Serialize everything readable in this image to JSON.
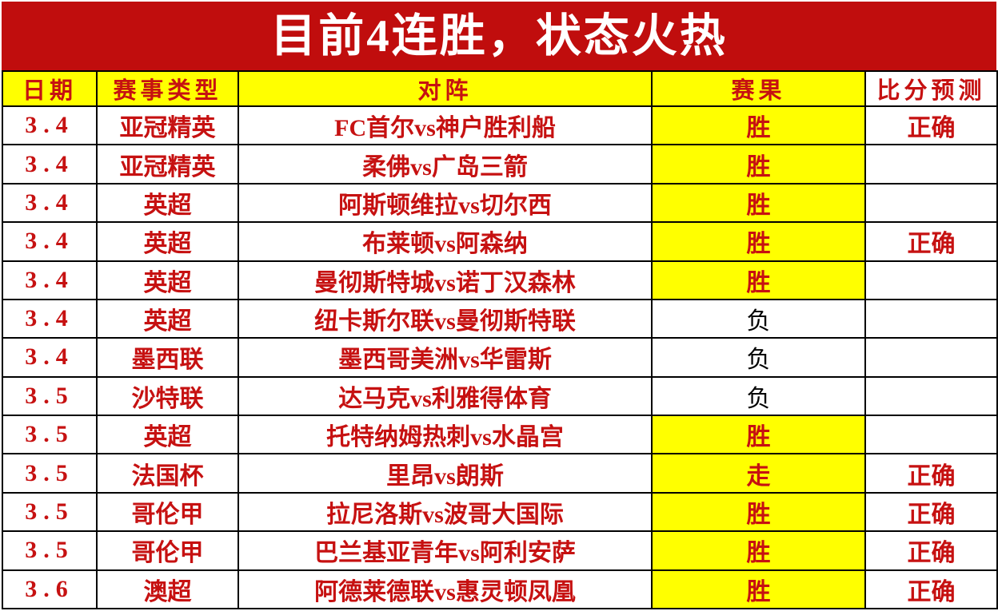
{
  "banner": {
    "title": "目前4连胜，状态火热"
  },
  "table": {
    "headers": [
      "日期",
      "赛事类型",
      "对阵",
      "赛果",
      "比分预测"
    ],
    "rows": [
      {
        "date": "3.4",
        "league": "亚冠精英",
        "match": "FC首尔vs神户胜利船",
        "result": "胜",
        "highlight": true,
        "prediction": "正确"
      },
      {
        "date": "3.4",
        "league": "亚冠精英",
        "match": "柔佛vs广岛三箭",
        "result": "胜",
        "highlight": true,
        "prediction": ""
      },
      {
        "date": "3.4",
        "league": "英超",
        "match": "阿斯顿维拉vs切尔西",
        "result": "胜",
        "highlight": true,
        "prediction": ""
      },
      {
        "date": "3.4",
        "league": "英超",
        "match": "布莱顿vs阿森纳",
        "result": "胜",
        "highlight": true,
        "prediction": "正确"
      },
      {
        "date": "3.4",
        "league": "英超",
        "match": "曼彻斯特城vs诺丁汉森林",
        "result": "胜",
        "highlight": true,
        "prediction": ""
      },
      {
        "date": "3.4",
        "league": "英超",
        "match": "纽卡斯尔联vs曼彻斯特联",
        "result": "负",
        "highlight": false,
        "prediction": ""
      },
      {
        "date": "3.4",
        "league": "墨西联",
        "match": "墨西哥美洲vs华雷斯",
        "result": "负",
        "highlight": false,
        "prediction": ""
      },
      {
        "date": "3.5",
        "league": "沙特联",
        "match": "达马克vs利雅得体育",
        "result": "负",
        "highlight": false,
        "prediction": ""
      },
      {
        "date": "3.5",
        "league": "英超",
        "match": "托特纳姆热刺vs水晶宫",
        "result": "胜",
        "highlight": true,
        "prediction": ""
      },
      {
        "date": "3.5",
        "league": "法国杯",
        "match": "里昂vs朗斯",
        "result": "走",
        "highlight": true,
        "prediction": "正确"
      },
      {
        "date": "3.5",
        "league": "哥伦甲",
        "match": "拉尼洛斯vs波哥大国际",
        "result": "胜",
        "highlight": true,
        "prediction": "正确"
      },
      {
        "date": "3.5",
        "league": "哥伦甲",
        "match": "巴兰基亚青年vs阿利安萨",
        "result": "胜",
        "highlight": true,
        "prediction": "正确"
      },
      {
        "date": "3.6",
        "league": "澳超",
        "match": "阿德莱德联vs惠灵顿凤凰",
        "result": "胜",
        "highlight": true,
        "prediction": "正确"
      }
    ]
  },
  "colors": {
    "banner_bg": "#c00d0d",
    "banner_text": "#ffffff",
    "header_bg": "#ffff00",
    "accent_red": "#c61111",
    "loss_text": "#000000",
    "highlight_bg": "#ffff00",
    "border": "#000000",
    "cell_bg": "#ffffff"
  }
}
